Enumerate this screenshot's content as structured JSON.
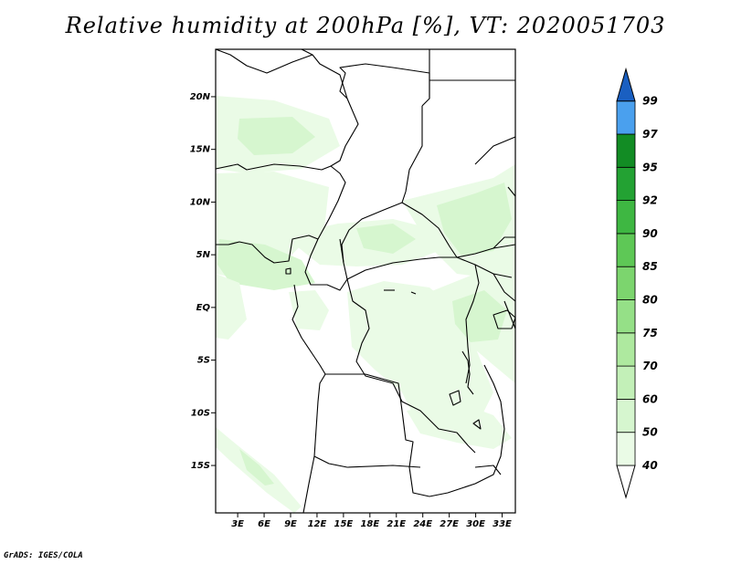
{
  "title": "Relative humidity at 200hPa [%], VT: 2020051703",
  "credit": "GrADS: IGES/COLA",
  "lat_labels": [
    "20N",
    "15N",
    "10N",
    "5N",
    "EQ",
    "5S",
    "10S",
    "15S"
  ],
  "lon_labels": [
    "3E",
    "6E",
    "9E",
    "12E",
    "15E",
    "18E",
    "21E",
    "24E",
    "27E",
    "30E",
    "33E"
  ],
  "colorbar": {
    "levels": [
      "40",
      "50",
      "60",
      "70",
      "75",
      "80",
      "85",
      "90",
      "92",
      "95",
      "97",
      "99"
    ],
    "colors": [
      "#eafbe6",
      "#d6f6cf",
      "#c3f0b8",
      "#aee99f",
      "#95e087",
      "#7cd56e",
      "#5ec856",
      "#3eb742",
      "#23a233",
      "#128c24",
      "#4aa0ee",
      "#2c7fd9",
      "#1a5fc1"
    ]
  },
  "map": {
    "lat_range": [
      -19.5,
      24.5
    ],
    "lon_range": [
      0.5,
      34.5
    ],
    "field": "relative humidity",
    "level": "200hPa",
    "unit": "%"
  }
}
